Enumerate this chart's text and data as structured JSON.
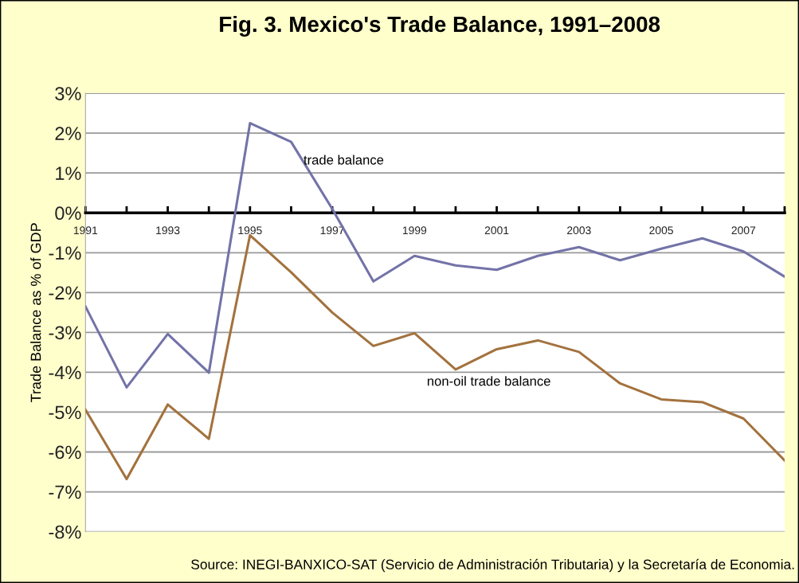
{
  "chart_data": {
    "type": "line",
    "title": "Fig. 3. Mexico's Trade Balance, 1991–2008",
    "ylabel": "Trade Balance as % of GDP",
    "categories": [
      "1991",
      null,
      "1993",
      null,
      "1995",
      null,
      "1997",
      null,
      "1999",
      null,
      "2001",
      null,
      "2003",
      null,
      "2005",
      null,
      "2007",
      null
    ],
    "series": [
      {
        "name": "trade balance",
        "color": "#7373a8",
        "values": [
          -2.35,
          -4.38,
          -3.04,
          -4.01,
          2.25,
          1.78,
          0.1,
          -1.72,
          -1.08,
          -1.32,
          -1.43,
          -1.08,
          -0.86,
          -1.19,
          -0.9,
          -0.64,
          -0.97,
          -1.6
        ]
      },
      {
        "name": "non-oil trade balance",
        "color": "#a3723e",
        "values": [
          -4.94,
          -6.68,
          -4.81,
          -5.67,
          -0.56,
          -1.49,
          -2.5,
          -3.34,
          -3.02,
          -3.93,
          -3.42,
          -3.2,
          -3.49,
          -4.28,
          -4.68,
          -4.75,
          -5.16,
          -6.21
        ]
      }
    ],
    "ylim": [
      -8,
      3
    ],
    "yticks": [
      {
        "value": 3,
        "label": "3%"
      },
      {
        "value": 2,
        "label": "2%"
      },
      {
        "value": 1,
        "label": "1%"
      },
      {
        "value": 0,
        "label": "0%"
      },
      {
        "value": -1,
        "label": "-1%"
      },
      {
        "value": -2,
        "label": "-2%"
      },
      {
        "value": -3,
        "label": "-3%"
      },
      {
        "value": -4,
        "label": "-4%"
      },
      {
        "value": -5,
        "label": "-5%"
      },
      {
        "value": -6,
        "label": "-6%"
      },
      {
        "value": -7,
        "label": "-7%"
      },
      {
        "value": -8,
        "label": "-8%"
      }
    ],
    "grid": "y",
    "legend": false,
    "marker": "none",
    "line_style": "solid",
    "annotations": [
      "Source: INEGI-BANXICO-SAT (Servicio de Administración Tributaria) y la Secretaría de Economia."
    ]
  }
}
